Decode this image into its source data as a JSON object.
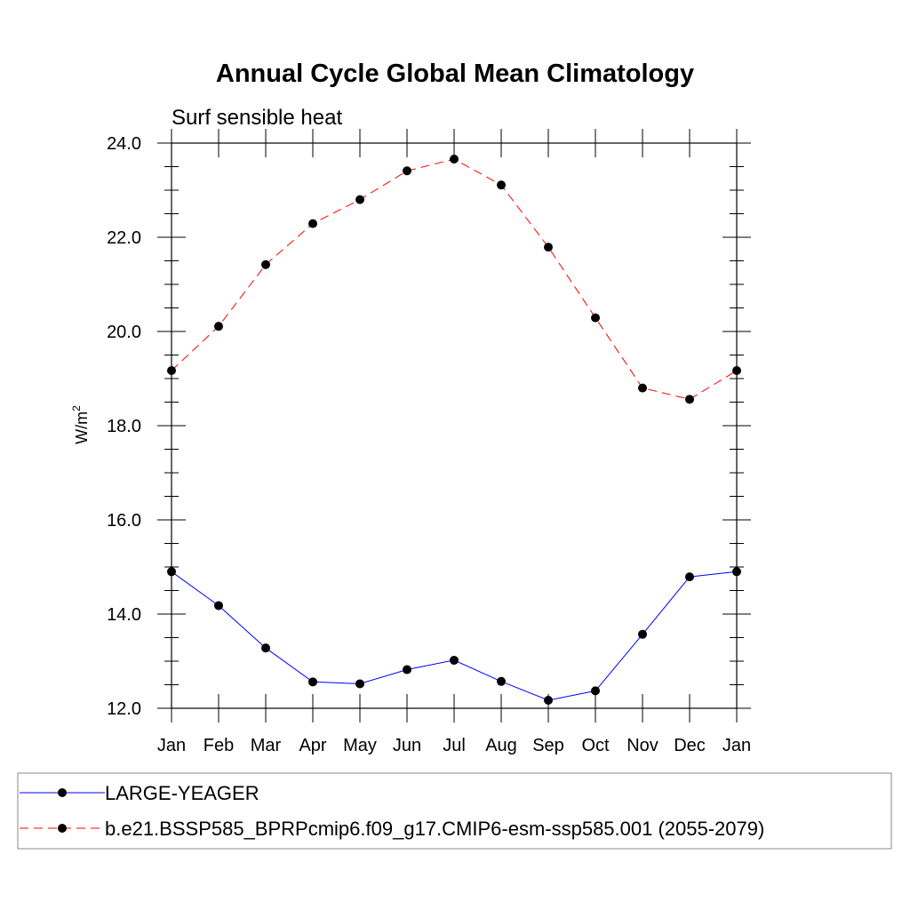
{
  "chart_data": {
    "type": "line",
    "title": "Annual Cycle Global Mean Climatology",
    "subtitle": "Surf sensible heat",
    "ylabel": "W/m",
    "ylabel_superscript": "2",
    "categories": [
      "Jan",
      "Feb",
      "Mar",
      "Apr",
      "May",
      "Jun",
      "Jul",
      "Aug",
      "Sep",
      "Oct",
      "Nov",
      "Dec",
      "Jan"
    ],
    "ylim": [
      12.0,
      24.0
    ],
    "yticks": [
      "12.0",
      "14.0",
      "16.0",
      "18.0",
      "20.0",
      "22.0",
      "24.0"
    ],
    "grid": false,
    "legend_position": "bottom",
    "series": [
      {
        "name": "LARGE-YEAGER",
        "color": "#0000ff",
        "dash": "solid",
        "marker": "circle",
        "values": [
          14.9,
          14.18,
          13.28,
          12.56,
          12.52,
          12.82,
          13.02,
          12.57,
          12.17,
          12.37,
          13.57,
          14.79,
          14.9
        ]
      },
      {
        "name": "b.e21.BSSP585_BPRPcmip6.f09_g17.CMIP6-esm-ssp585.001 (2055-2079)",
        "color": "#ff0000",
        "dash": "dashed",
        "marker": "circle",
        "values": [
          19.17,
          20.11,
          21.42,
          22.29,
          22.8,
          23.41,
          23.66,
          23.11,
          21.79,
          20.29,
          18.8,
          18.56,
          19.17
        ]
      }
    ]
  }
}
